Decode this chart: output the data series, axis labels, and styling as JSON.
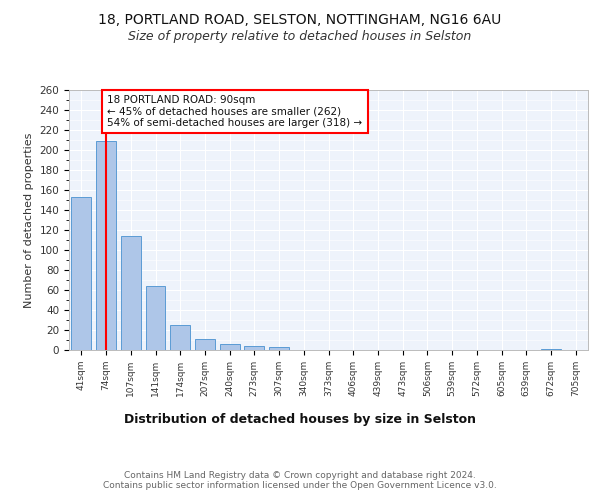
{
  "title1": "18, PORTLAND ROAD, SELSTON, NOTTINGHAM, NG16 6AU",
  "title2": "Size of property relative to detached houses in Selston",
  "xlabel": "Distribution of detached houses by size in Selston",
  "ylabel": "Number of detached properties",
  "categories": [
    "41sqm",
    "74sqm",
    "107sqm",
    "141sqm",
    "174sqm",
    "207sqm",
    "240sqm",
    "273sqm",
    "307sqm",
    "340sqm",
    "373sqm",
    "406sqm",
    "439sqm",
    "473sqm",
    "506sqm",
    "539sqm",
    "572sqm",
    "605sqm",
    "639sqm",
    "672sqm",
    "705sqm"
  ],
  "values": [
    153,
    209,
    114,
    64,
    25,
    11,
    6,
    4,
    3,
    0,
    0,
    0,
    0,
    0,
    0,
    0,
    0,
    0,
    0,
    1,
    0
  ],
  "bar_color": "#aec6e8",
  "bar_edge_color": "#5b9bd5",
  "highlight_color": "#ff0000",
  "property_line_x": 1.0,
  "annotation_text": "18 PORTLAND ROAD: 90sqm\n← 45% of detached houses are smaller (262)\n54% of semi-detached houses are larger (318) →",
  "annotation_box_color": "#ffffff",
  "annotation_box_edge_color": "#ff0000",
  "ylim": [
    0,
    260
  ],
  "yticks": [
    0,
    20,
    40,
    60,
    80,
    100,
    120,
    140,
    160,
    180,
    200,
    220,
    240,
    260
  ],
  "footer": "Contains HM Land Registry data © Crown copyright and database right 2024.\nContains public sector information licensed under the Open Government Licence v3.0.",
  "bg_color": "#eef3fb",
  "grid_color": "#ffffff",
  "title1_fontsize": 10,
  "title2_fontsize": 9,
  "xlabel_fontsize": 9,
  "ylabel_fontsize": 8,
  "footer_fontsize": 6.5,
  "annotation_fontsize": 7.5
}
